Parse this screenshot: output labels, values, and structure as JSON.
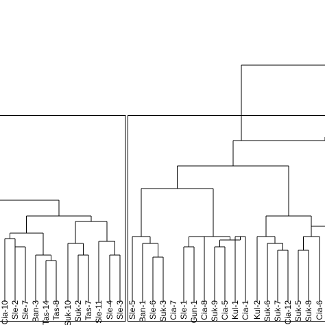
{
  "diagram": {
    "type": "dendrogram",
    "line_color": "#000000",
    "background": "#ffffff",
    "clusters": [
      {
        "leaves": [
          "Cia-10",
          "Sle-2",
          "Sle-7",
          "Ban-3",
          "Tas-14",
          "Tas-8",
          "Suk-10",
          "Suk-2",
          "Tas-7",
          "Sle-11",
          "Sle-4",
          "Sle-3"
        ]
      },
      {
        "leaves": [
          "Sle-5",
          "Ban-1",
          "Sle-6",
          "Suk-3",
          "Cia-7",
          "Sle-1",
          "Gun-1",
          "Cia-8",
          "Suk-9",
          "Cia-5",
          "Kul-1",
          "Cia-1",
          "Kul-2",
          "Suk-6",
          "Suk-7",
          "Cia-12",
          "Suk-5",
          "Suk-8",
          "Cia-6"
        ]
      }
    ]
  }
}
